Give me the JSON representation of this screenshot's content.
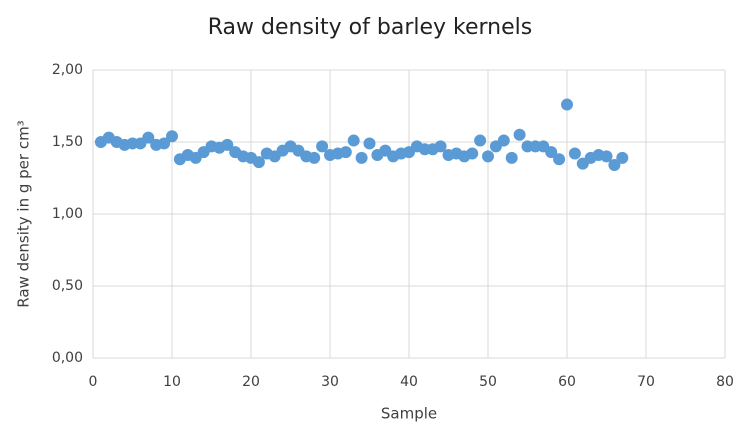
{
  "chart_data": {
    "type": "scatter",
    "title": "Raw density of barley kernels",
    "x_label": "Sample",
    "y_label": "Raw density in g per cm³",
    "color": "#5b9bd5",
    "grid": true,
    "xlim": [
      0,
      80
    ],
    "xticks": [
      0,
      10,
      20,
      30,
      40,
      50,
      60,
      70,
      80
    ],
    "ylim": [
      0,
      2
    ],
    "yticks": [
      {
        "value": 0,
        "label": "0,00"
      },
      {
        "value": 0.5,
        "label": "0,50"
      },
      {
        "value": 1,
        "label": "1,00"
      },
      {
        "value": 1.5,
        "label": "1,50"
      },
      {
        "value": 2,
        "label": "2,00"
      }
    ],
    "x": [
      1,
      2,
      3,
      4,
      5,
      6,
      7,
      8,
      9,
      10,
      11,
      12,
      13,
      14,
      15,
      16,
      17,
      18,
      19,
      20,
      21,
      22,
      23,
      24,
      25,
      26,
      27,
      28,
      29,
      30,
      31,
      32,
      33,
      34,
      35,
      36,
      37,
      38,
      39,
      40,
      41,
      42,
      43,
      44,
      45,
      46,
      47,
      48,
      49,
      50,
      51,
      52,
      53,
      54,
      55,
      56,
      57,
      58,
      59,
      60,
      61,
      62,
      63,
      64,
      65,
      66,
      67
    ],
    "values": [
      1.5,
      1.53,
      1.5,
      1.48,
      1.49,
      1.49,
      1.53,
      1.48,
      1.49,
      1.54,
      1.38,
      1.41,
      1.39,
      1.43,
      1.47,
      1.46,
      1.48,
      1.43,
      1.4,
      1.39,
      1.36,
      1.42,
      1.4,
      1.44,
      1.47,
      1.44,
      1.4,
      1.39,
      1.47,
      1.41,
      1.42,
      1.43,
      1.51,
      1.39,
      1.49,
      1.41,
      1.44,
      1.4,
      1.42,
      1.43,
      1.47,
      1.45,
      1.45,
      1.47,
      1.41,
      1.42,
      1.4,
      1.42,
      1.51,
      1.4,
      1.47,
      1.51,
      1.39,
      1.55,
      1.47,
      1.47,
      1.47,
      1.43,
      1.38,
      1.76,
      1.42,
      1.35,
      1.39,
      1.41,
      1.4,
      1.34,
      1.39
    ]
  }
}
